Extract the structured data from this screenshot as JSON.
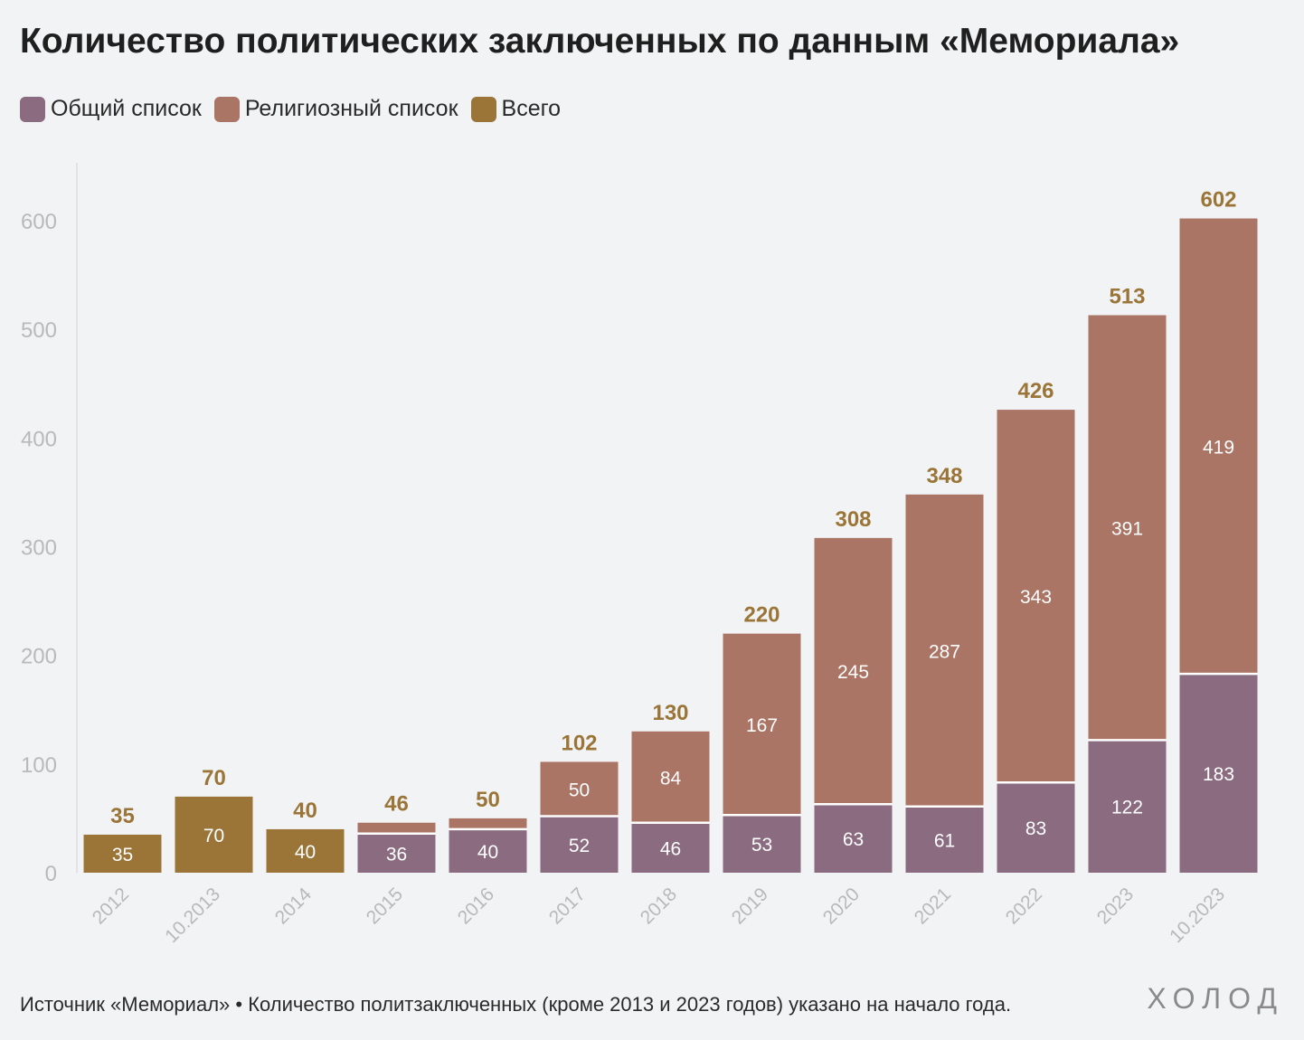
{
  "title": "Количество политических заключенных по данным «Мемориала»",
  "legend": [
    {
      "label": "Общий список",
      "color": "#8a6b80"
    },
    {
      "label": "Религиозный список",
      "color": "#ab7566"
    },
    {
      "label": "Всего",
      "color": "#9a7537"
    }
  ],
  "footer": "Источник «Мемориал» • Количество политзаключенных (кроме 2013 и 2023 годов) указано на начало года.",
  "logo": "ХОЛОД",
  "chart_data": {
    "type": "bar",
    "stacked": true,
    "categories": [
      "2012",
      "10.2013",
      "2014",
      "2015",
      "2016",
      "2017",
      "2018",
      "2019",
      "2020",
      "2021",
      "2022",
      "2023",
      "10.2023"
    ],
    "series": [
      {
        "name": "Общий список",
        "values": [
          null,
          null,
          null,
          36,
          40,
          52,
          46,
          53,
          63,
          61,
          83,
          122,
          183
        ]
      },
      {
        "name": "Религиозный список",
        "values": [
          null,
          null,
          null,
          10,
          10,
          50,
          84,
          167,
          245,
          287,
          343,
          391,
          419
        ]
      },
      {
        "name": "Всего",
        "values": [
          35,
          70,
          40,
          null,
          null,
          null,
          null,
          null,
          null,
          null,
          null,
          null,
          null
        ]
      }
    ],
    "totals": [
      35,
      70,
      40,
      46,
      50,
      102,
      130,
      220,
      308,
      348,
      426,
      513,
      602
    ],
    "y_ticks": [
      0,
      100,
      200,
      300,
      400,
      500,
      600
    ],
    "ylim": [
      0,
      650
    ],
    "grid": false,
    "legend_position": "top-left",
    "colors": {
      "general": "#8a6b80",
      "religious": "#ab7566",
      "total": "#9a7537",
      "total_label": "#9a7537",
      "axis_label": "#b9b9b9"
    }
  }
}
